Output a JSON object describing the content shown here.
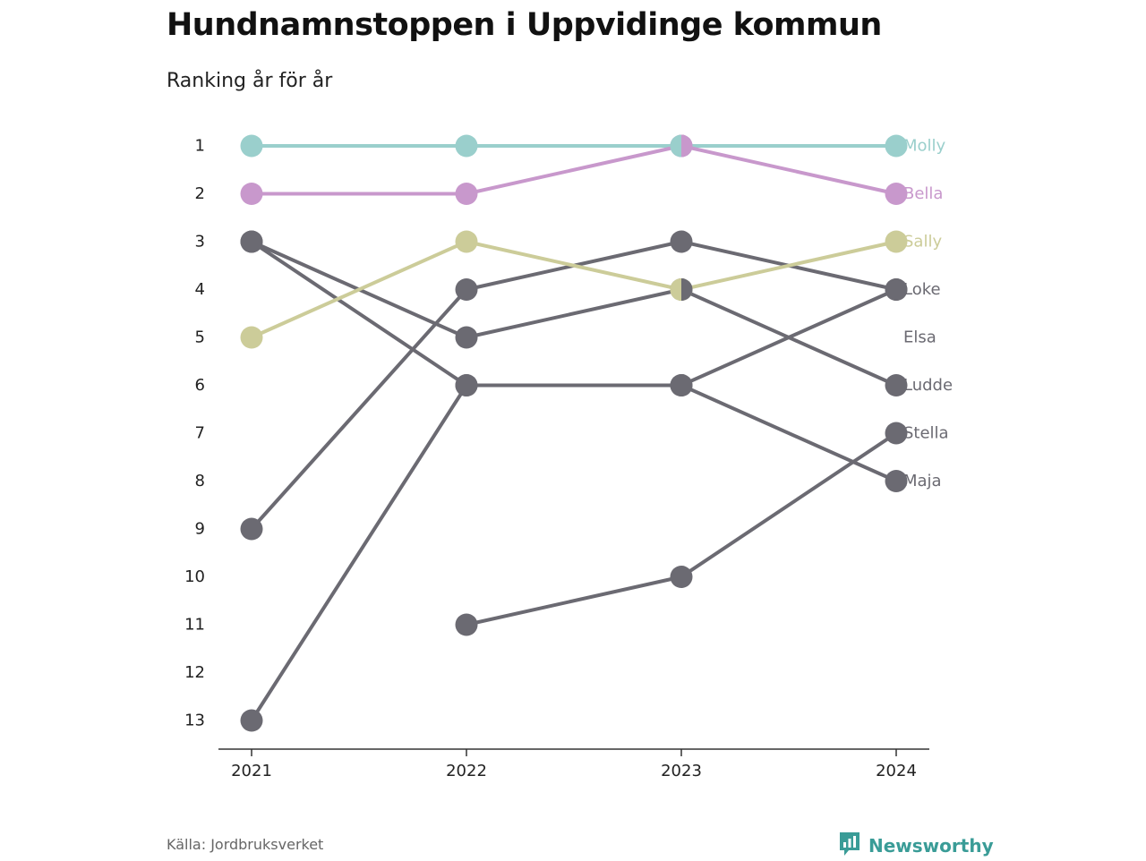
{
  "title": "Hundnamnstoppen i Uppvidinge kommun",
  "subtitle": "Ranking år för år",
  "source": "Källa: Jordbruksverket",
  "brand": {
    "name": "Newsworthy",
    "icon": "newsworthy-logo-icon",
    "color": "#3a9c97"
  },
  "chart_data": {
    "type": "line",
    "subtype": "bump",
    "x": [
      "2021",
      "2022",
      "2023",
      "2024"
    ],
    "y_ticks": [
      1,
      2,
      3,
      4,
      5,
      6,
      7,
      8,
      9,
      10,
      11,
      12,
      13
    ],
    "ylim": [
      1,
      13
    ],
    "y_inverted": true,
    "grid": false,
    "series": [
      {
        "name": "Molly",
        "ranks": [
          1,
          1,
          1,
          1
        ],
        "color": "#9acfcc"
      },
      {
        "name": "Bella",
        "ranks": [
          2,
          2,
          1,
          2
        ],
        "color": "#c898cc"
      },
      {
        "name": "Sally",
        "ranks": [
          5,
          3,
          4,
          3
        ],
        "color": "#cccc99"
      },
      {
        "name": "Loke",
        "ranks": [
          9,
          4,
          3,
          4
        ],
        "color": "#6b6a72"
      },
      {
        "name": "Elsa",
        "ranks": [
          13,
          6,
          6,
          4
        ],
        "color": "#6b6a72"
      },
      {
        "name": "Ludde",
        "ranks": [
          3,
          5,
          4,
          6
        ],
        "color": "#6b6a72"
      },
      {
        "name": "Stella",
        "ranks": [
          null,
          11,
          10,
          7
        ],
        "color": "#6b6a72"
      },
      {
        "name": "Maja",
        "ranks": [
          3,
          6,
          6,
          8
        ],
        "color": "#6b6a72"
      }
    ],
    "end_labels": [
      {
        "text": "Molly",
        "rank": 1,
        "color": "#9acfcc"
      },
      {
        "text": "Bella",
        "rank": 2,
        "color": "#c898cc"
      },
      {
        "text": "Sally",
        "rank": 3,
        "color": "#cccc99"
      },
      {
        "text": "Loke",
        "rank": 4,
        "color": "#6b6a72"
      },
      {
        "text": "Elsa",
        "rank": 5,
        "color": "#6b6a72"
      },
      {
        "text": "Ludde",
        "rank": 6,
        "color": "#6b6a72"
      },
      {
        "text": "Stella",
        "rank": 7,
        "color": "#6b6a72"
      },
      {
        "text": "Maja",
        "rank": 8,
        "color": "#6b6a72"
      }
    ]
  }
}
